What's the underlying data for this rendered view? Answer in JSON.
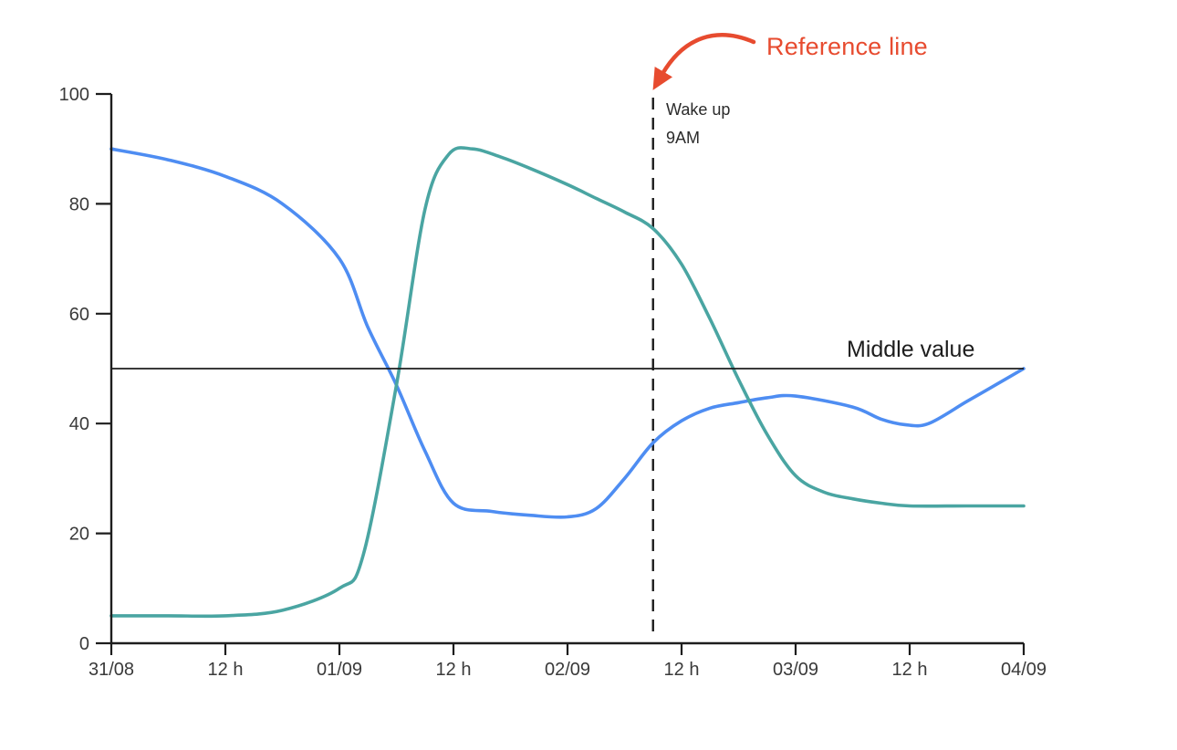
{
  "chart_data": {
    "type": "line",
    "title": "",
    "background": "#ffffff",
    "grid": false,
    "legend": false,
    "axis_color": "#1d1d1d",
    "tick_label_color": "#3a3a3a",
    "x_axis": {
      "label": "",
      "unit": "datetime-hours-from-31/08-00:00",
      "range_hours": [
        0,
        96
      ],
      "ticks": [
        {
          "hours": 0,
          "label": "31/08"
        },
        {
          "hours": 12,
          "label": "12 h"
        },
        {
          "hours": 24,
          "label": "01/09"
        },
        {
          "hours": 36,
          "label": "12 h"
        },
        {
          "hours": 48,
          "label": "02/09"
        },
        {
          "hours": 60,
          "label": "12 h"
        },
        {
          "hours": 72,
          "label": "03/09"
        },
        {
          "hours": 84,
          "label": "12 h"
        },
        {
          "hours": 96,
          "label": "04/09"
        }
      ]
    },
    "y_axis": {
      "label": "",
      "range": [
        0,
        100
      ],
      "ticks": [
        0,
        20,
        40,
        60,
        80,
        100
      ]
    },
    "series": [
      {
        "name": "blue series",
        "color": "#4E8DF2",
        "points": [
          [
            0,
            90
          ],
          [
            6,
            88
          ],
          [
            12,
            85
          ],
          [
            18,
            80
          ],
          [
            24,
            70
          ],
          [
            27,
            57.5
          ],
          [
            30,
            47
          ],
          [
            33,
            35
          ],
          [
            36,
            25.5
          ],
          [
            40,
            24
          ],
          [
            44,
            23.3
          ],
          [
            48,
            23
          ],
          [
            51,
            24.5
          ],
          [
            54,
            30
          ],
          [
            57,
            36.5
          ],
          [
            60,
            40.5
          ],
          [
            63,
            42.8
          ],
          [
            66,
            43.8
          ],
          [
            69,
            44.7
          ],
          [
            72,
            45
          ],
          [
            78,
            43
          ],
          [
            81,
            40.8
          ],
          [
            83.5,
            39.8
          ],
          [
            86,
            40
          ],
          [
            90,
            44
          ],
          [
            93,
            47
          ],
          [
            96,
            50
          ]
        ]
      },
      {
        "name": "teal series",
        "color": "#4AA5A2",
        "points": [
          [
            0,
            5
          ],
          [
            6,
            5
          ],
          [
            12,
            5
          ],
          [
            18,
            6
          ],
          [
            24,
            10
          ],
          [
            26.5,
            16
          ],
          [
            30,
            47
          ],
          [
            33,
            79
          ],
          [
            35.5,
            89
          ],
          [
            38,
            90
          ],
          [
            41,
            88.5
          ],
          [
            44,
            86.5
          ],
          [
            48,
            83.5
          ],
          [
            51,
            81
          ],
          [
            54,
            78.5
          ],
          [
            57,
            75.5
          ],
          [
            60,
            69
          ],
          [
            63,
            59
          ],
          [
            66,
            48
          ],
          [
            69,
            38
          ],
          [
            72,
            30.5
          ],
          [
            75,
            27.5
          ],
          [
            78,
            26.3
          ],
          [
            81,
            25.5
          ],
          [
            84,
            25
          ],
          [
            90,
            25
          ],
          [
            96,
            25
          ]
        ]
      }
    ],
    "reference_vline": {
      "hours": 57,
      "style": "dashed",
      "color": "#1d1d1d",
      "labels": [
        "Wake up",
        "9AM"
      ]
    },
    "reference_hline": {
      "value": 50,
      "color": "#1d1d1d",
      "label": "Middle value"
    },
    "annotation": {
      "text": "Reference line",
      "color": "#E74B2F",
      "arrow": true
    }
  }
}
